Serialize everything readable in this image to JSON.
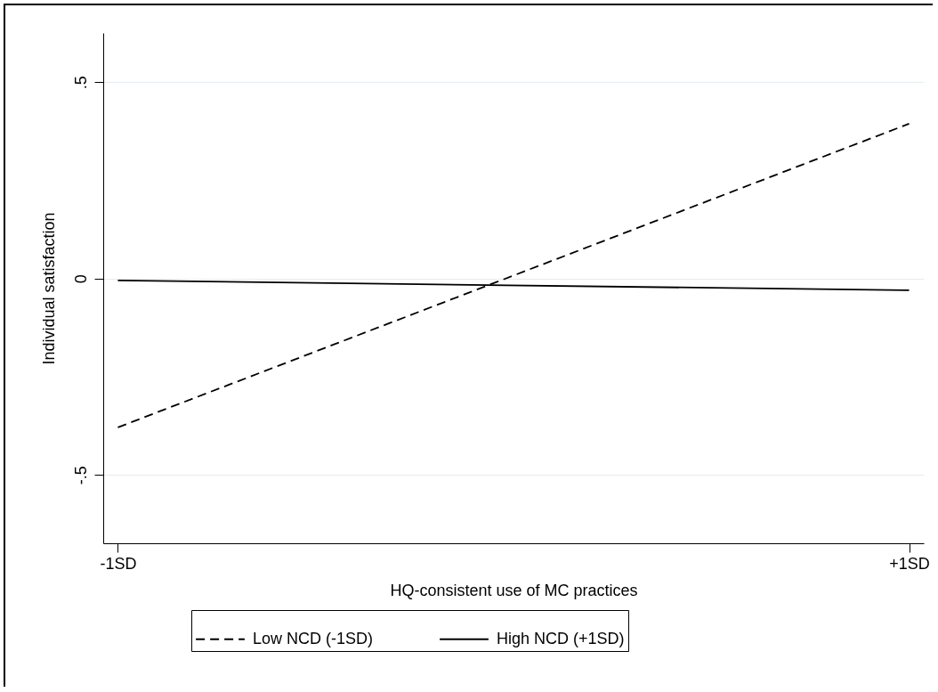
{
  "chart_data": {
    "type": "line",
    "xlabel": "HQ-consistent use of MC practices",
    "ylabel": "Individual satisfaction",
    "x": [
      -1,
      1
    ],
    "xlim": [
      -1.037,
      1.037
    ],
    "xticks": [
      {
        "value": -1,
        "label": "-1SD"
      },
      {
        "value": 1,
        "label": "+1SD"
      }
    ],
    "ylim": [
      -0.674,
      0.625
    ],
    "yticks": [
      {
        "value": -0.5,
        "label": "-.5"
      },
      0,
      {
        "value": 0.5,
        "label": ".5"
      }
    ],
    "series": [
      {
        "name": "Low NCD (-1SD)",
        "color": "#000000",
        "line_style": "dashed",
        "values": [
          -0.379,
          0.394
        ]
      },
      {
        "name": "High NCD (+1SD)",
        "color": "#000000",
        "line_style": "solid",
        "values": [
          -0.005,
          -0.03
        ]
      }
    ],
    "grid": "y",
    "legend": "bottom",
    "marker": "none"
  }
}
